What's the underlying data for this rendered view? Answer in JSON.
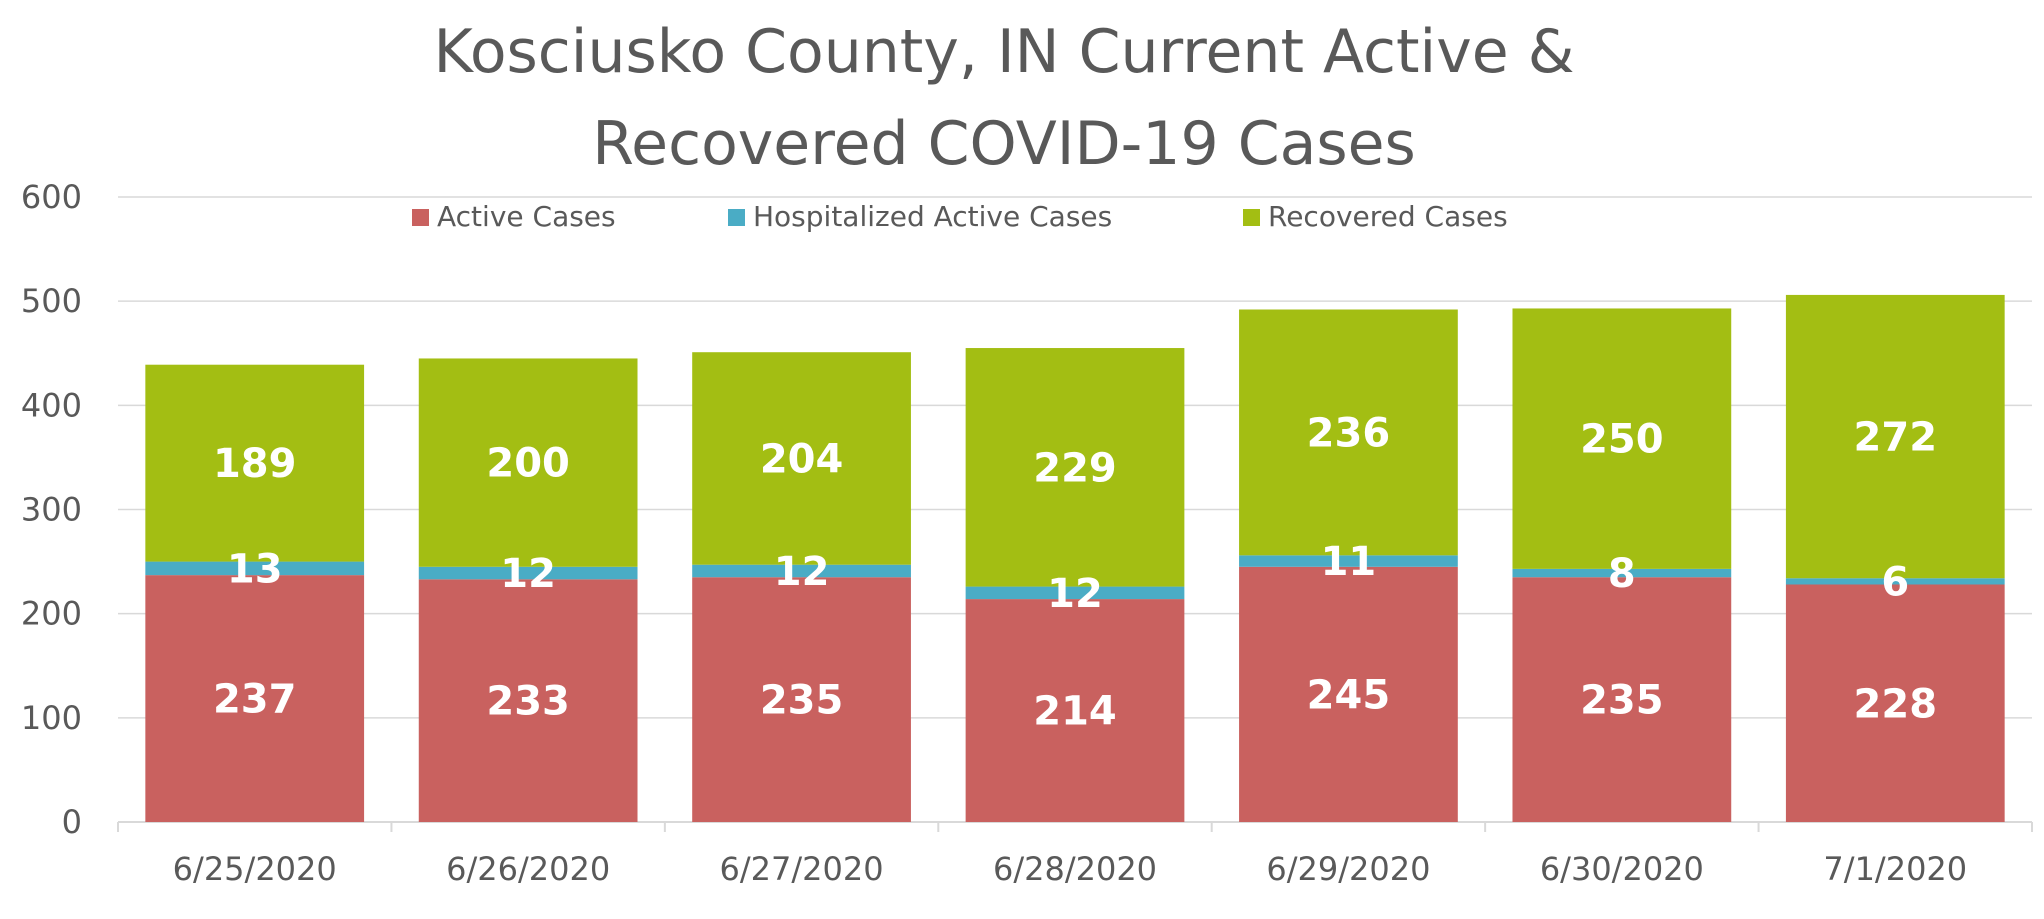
{
  "chart_data": {
    "type": "bar",
    "stacked": true,
    "title": "Kosciusko County, IN Current Active & Recovered COVID-19 Cases",
    "title_lines": [
      "Kosciusko County, IN Current Active &",
      "Recovered COVID-19 Cases"
    ],
    "xlabel": "",
    "ylabel": "",
    "ylim": [
      0,
      600
    ],
    "yticks": [
      0,
      100,
      200,
      300,
      400,
      500,
      600
    ],
    "grid": true,
    "legend_position": "top",
    "categories": [
      "6/25/2020",
      "6/26/2020",
      "6/27/2020",
      "6/28/2020",
      "6/29/2020",
      "6/30/2020",
      "7/1/2020"
    ],
    "series": [
      {
        "name": "Active Cases",
        "color": "#c9615f",
        "values": [
          237,
          233,
          235,
          214,
          245,
          235,
          228
        ]
      },
      {
        "name": "Hospitalized Active Cases",
        "color": "#4aacc5",
        "values": [
          13,
          12,
          12,
          12,
          11,
          8,
          6
        ]
      },
      {
        "name": "Recovered Cases",
        "color": "#a3be13",
        "values": [
          189,
          200,
          204,
          229,
          236,
          250,
          272
        ]
      }
    ]
  }
}
